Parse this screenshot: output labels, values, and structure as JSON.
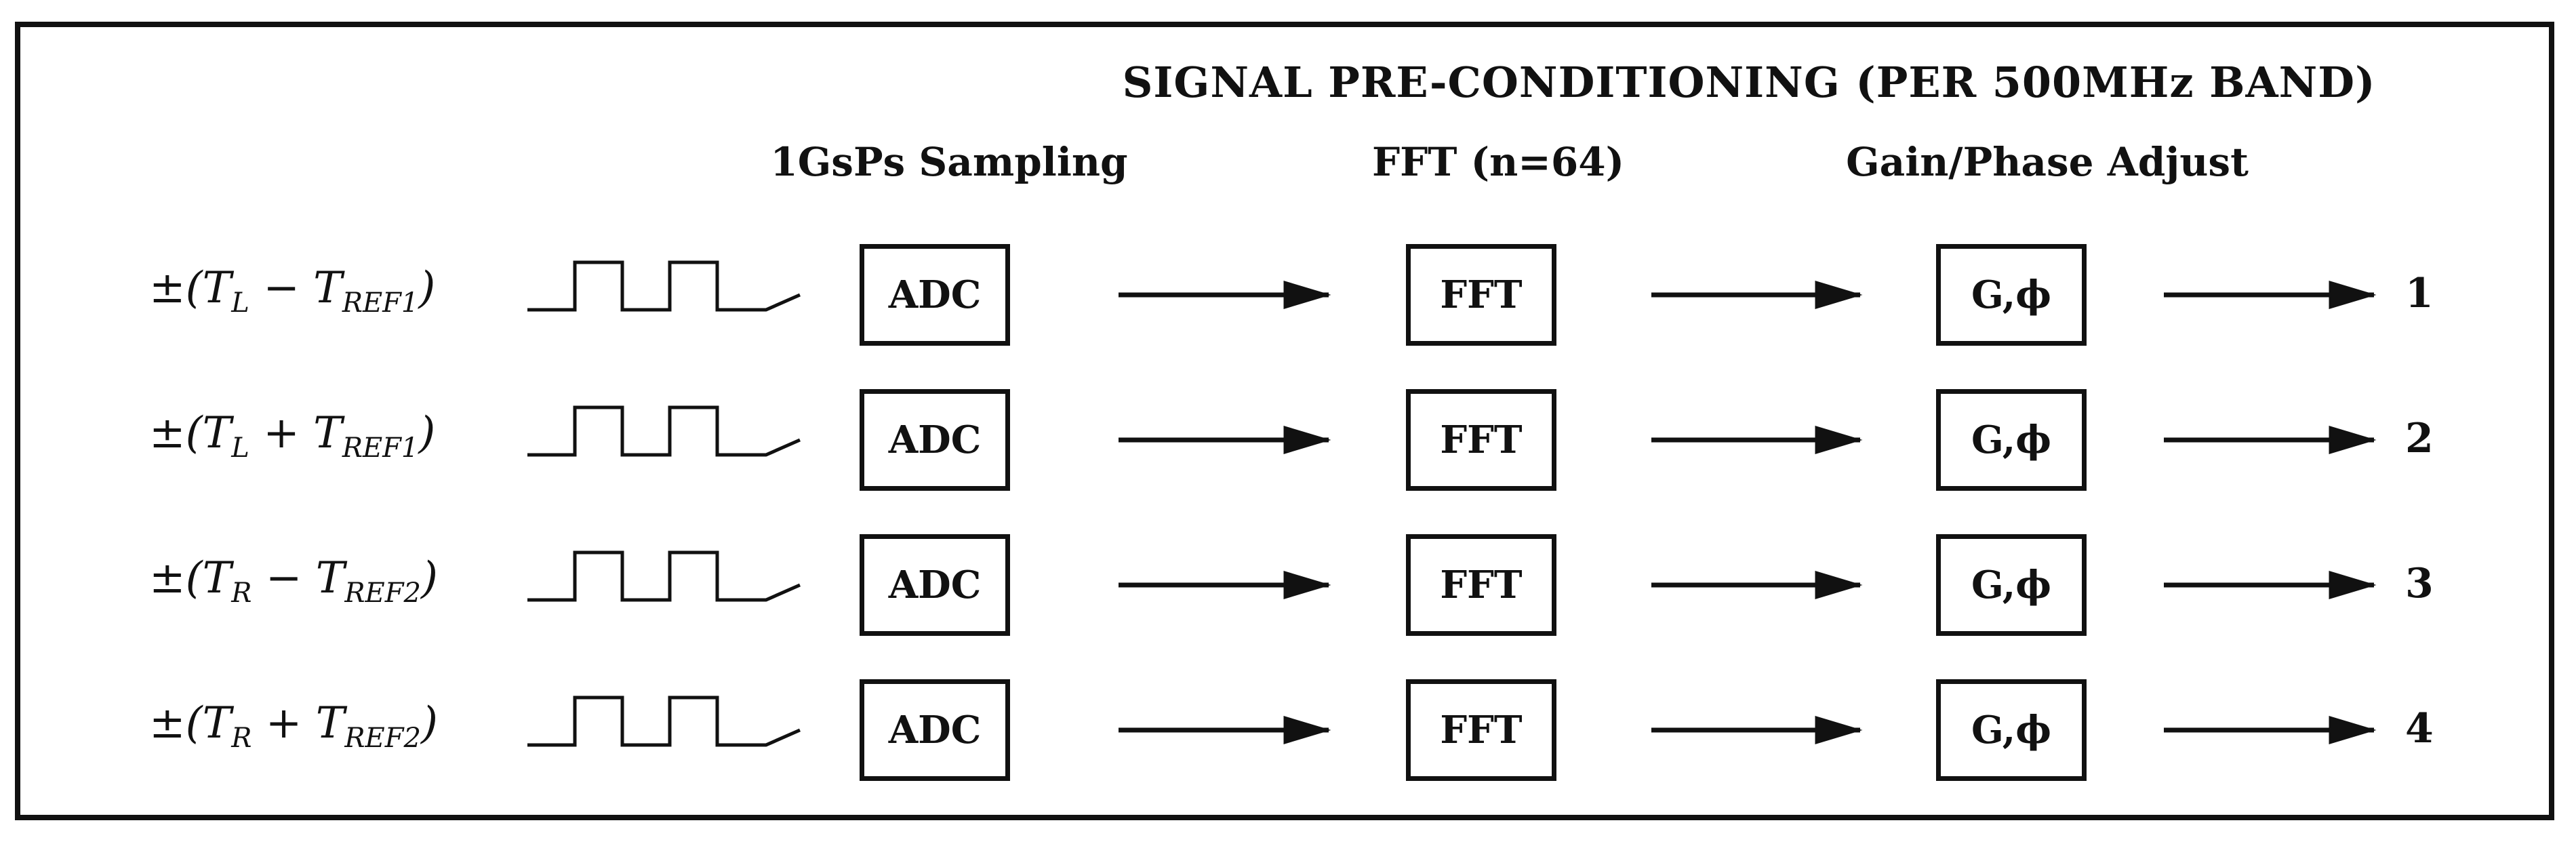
{
  "title": "SIGNAL PRE-CONDITIONING (PER 500MHz BAND)",
  "column_headers": {
    "sampling": "1GsPs Sampling",
    "fft": "FFT (n=64)",
    "gain_phase": "Gain/Phase Adjust"
  },
  "rows": [
    {
      "sign": "±(",
      "t1": "T",
      "t1_sub": "L",
      "op": "−",
      "t2": "T",
      "t2_sub": "REF1",
      "close": ")",
      "adc": "ADC",
      "fft": "FFT",
      "gain": "G,ϕ",
      "output": "1"
    },
    {
      "sign": "±(",
      "t1": "T",
      "t1_sub": "L",
      "op": "+",
      "t2": "T",
      "t2_sub": "REF1",
      "close": ")",
      "adc": "ADC",
      "fft": "FFT",
      "gain": "G,ϕ",
      "output": "2"
    },
    {
      "sign": "±(",
      "t1": "T",
      "t1_sub": "R",
      "op": "−",
      "t2": "T",
      "t2_sub": "REF2",
      "close": ")",
      "adc": "ADC",
      "fft": "FFT",
      "gain": "G,ϕ",
      "output": "3"
    },
    {
      "sign": "±(",
      "t1": "T",
      "t1_sub": "R",
      "op": "+",
      "t2": "T",
      "t2_sub": "REF2",
      "close": ")",
      "adc": "ADC",
      "fft": "FFT",
      "gain": "G,ϕ",
      "output": "4"
    }
  ],
  "colors": {
    "stroke": "#111111",
    "background": "#ffffff"
  }
}
